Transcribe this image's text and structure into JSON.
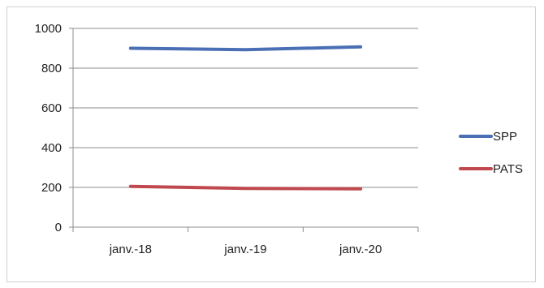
{
  "chart_data": {
    "type": "line",
    "categories": [
      "janv.-18",
      "janv.-19",
      "janv.-20"
    ],
    "series": [
      {
        "name": "SPP",
        "values": [
          900,
          893,
          907
        ],
        "color": "#4a6fb5"
      },
      {
        "name": "PATS",
        "values": [
          205,
          195,
          193
        ],
        "color": "#c0494f"
      }
    ],
    "ylim": [
      0,
      1000
    ],
    "yticks": [
      0,
      200,
      400,
      600,
      800,
      1000
    ],
    "grid": true,
    "legend": "right"
  }
}
